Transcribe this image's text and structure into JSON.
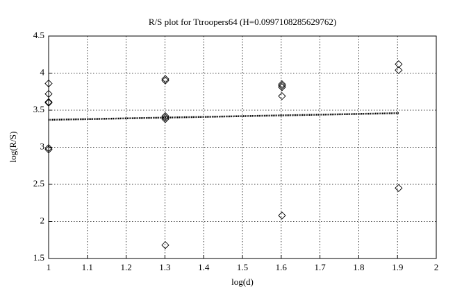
{
  "chart_data": {
    "type": "scatter",
    "title": "R/S plot for Ttroopers64 (H=0.0997108285629762)",
    "x_label": "log(d)",
    "y_label": "log(R/S)",
    "xlim": [
      1,
      2
    ],
    "ylim": [
      1.5,
      4.5
    ],
    "xticks": [
      1,
      1.1,
      1.2,
      1.3,
      1.4,
      1.5,
      1.6,
      1.7,
      1.8,
      1.9,
      2
    ],
    "yticks": [
      1.5,
      2,
      2.5,
      3,
      3.5,
      4,
      4.5
    ],
    "grid": true,
    "series": [
      {
        "marker": "diamond",
        "color": "#000000",
        "x": [
          1,
          1,
          1,
          1,
          1,
          1,
          1.301,
          1.301,
          1.301,
          1.301,
          1.301,
          1.301,
          1.602,
          1.602,
          1.602,
          1.602,
          1.602,
          1.903,
          1.903,
          1.903
        ],
        "y": [
          3.86,
          3.72,
          3.61,
          3.6,
          2.99,
          2.97,
          3.92,
          3.9,
          3.42,
          3.4,
          3.38,
          1.68,
          3.85,
          3.83,
          3.81,
          3.69,
          2.08,
          4.12,
          4.04,
          2.45
        ]
      }
    ],
    "fit_line": {
      "x": [
        1,
        1.903
      ],
      "y": [
        3.37,
        3.46
      ],
      "color": "#000000",
      "style": "dotted"
    }
  }
}
